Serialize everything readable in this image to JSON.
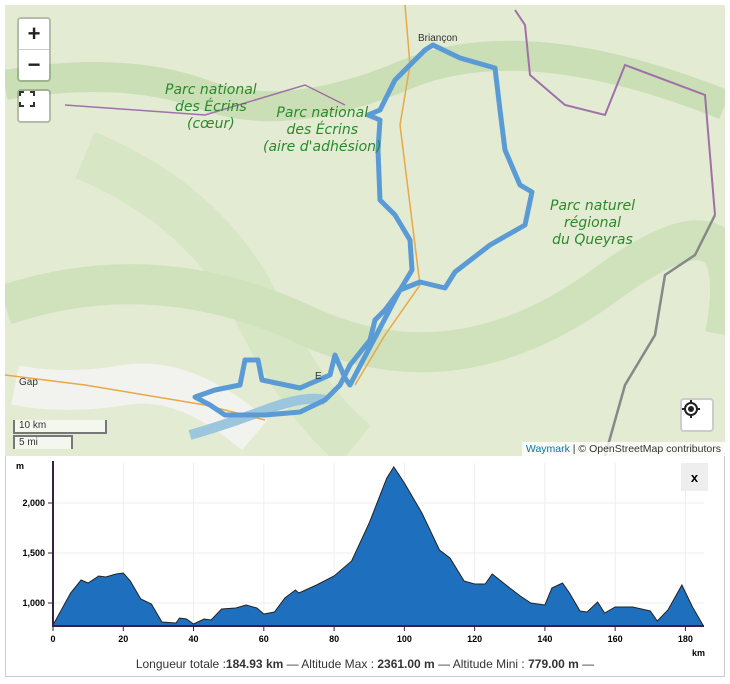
{
  "map": {
    "zoom_in": "+",
    "zoom_out": "−",
    "fullscreen_icon": "fullscreen-icon",
    "locate_icon": "locate-icon",
    "labels": [
      {
        "text": "Parc national\ndes Écrins\n(cœur)"
      },
      {
        "text": "Parc national\ndes Écrins\n(aire d'adhésion)"
      },
      {
        "text": "Parc naturel\nrégional\ndu Queyras"
      }
    ],
    "towns": {
      "briancon": "Briançon",
      "gap": "Gap",
      "e": "E"
    },
    "scale": {
      "km": "10 km",
      "mi": "5 mi"
    },
    "attribution": {
      "link": "Waymark",
      "text": " | © OpenStreetMap contributors"
    },
    "route_color": "#5b9bd5"
  },
  "profile": {
    "close_label": "x",
    "summary": {
      "len_label": "Longueur totale :",
      "len": "184.93 km",
      "max_label": " — Altitude Max : ",
      "max": "2361.00 m",
      "min_label": " — Altitude Mini : ",
      "min": "779.00 m",
      "end": " —"
    }
  },
  "chart_data": {
    "type": "area",
    "xlabel": "km",
    "ylabel": "m",
    "xlim": [
      0,
      185
    ],
    "ylim": [
      779,
      2361
    ],
    "x_ticks": [
      0,
      20,
      40,
      60,
      80,
      100,
      120,
      140,
      160,
      180
    ],
    "y_ticks": [
      1000,
      1500,
      2000
    ],
    "y_tick_labels": [
      "1,000",
      "1,500",
      "2,000"
    ],
    "grid": true,
    "color": "#1f6fbf",
    "x": [
      0,
      5,
      8,
      10,
      13,
      15,
      18,
      20,
      22,
      25,
      28,
      31,
      35,
      36,
      38,
      40,
      43,
      45,
      48,
      52,
      55,
      58,
      60,
      63,
      66,
      69,
      70,
      75,
      80,
      85,
      90,
      95,
      97,
      100,
      105,
      110,
      113,
      117,
      120,
      123,
      125,
      130,
      133,
      136,
      140,
      142,
      145,
      147,
      150,
      152,
      155,
      157,
      160,
      165,
      170,
      172,
      175,
      179,
      182,
      185
    ],
    "y": [
      779,
      1100,
      1230,
      1200,
      1270,
      1260,
      1290,
      1300,
      1220,
      1040,
      990,
      810,
      800,
      850,
      840,
      790,
      840,
      830,
      940,
      950,
      980,
      950,
      890,
      910,
      1050,
      1130,
      1100,
      1180,
      1270,
      1420,
      1800,
      2250,
      2361,
      2200,
      1900,
      1530,
      1450,
      1220,
      1190,
      1190,
      1290,
      1150,
      1070,
      1000,
      980,
      1150,
      1200,
      1100,
      920,
      910,
      1010,
      900,
      960,
      960,
      920,
      820,
      930,
      1180,
      960,
      779
    ]
  }
}
